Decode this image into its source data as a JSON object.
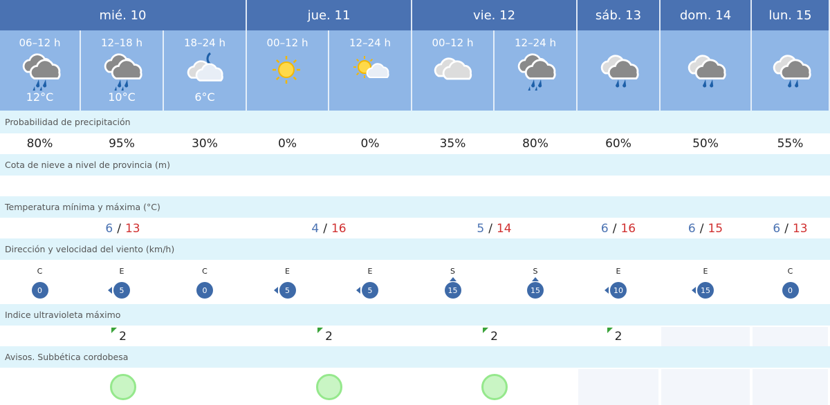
{
  "days": [
    {
      "label": "mié. 10",
      "tmin": "6",
      "tmax": "13"
    },
    {
      "label": "jue. 11",
      "tmin": "4",
      "tmax": "16"
    },
    {
      "label": "vie. 12",
      "tmin": "5",
      "tmax": "14"
    },
    {
      "label": "sáb. 13",
      "tmin": "6",
      "tmax": "16"
    },
    {
      "label": "dom. 14",
      "tmin": "6",
      "tmax": "15"
    },
    {
      "label": "lun. 15",
      "tmin": "6",
      "tmax": "13"
    }
  ],
  "temp_sep": "/",
  "periods": [
    {
      "period": "06–12 h",
      "icon": "rain-cloud-icon",
      "temp": "12°C",
      "precip": "80%",
      "wind_dir": "C",
      "wind_speed": "0",
      "arrow": "none"
    },
    {
      "period": "12–18 h",
      "icon": "rain-cloud-icon",
      "temp": "10°C",
      "precip": "95%",
      "wind_dir": "E",
      "wind_speed": "5",
      "arrow": "left"
    },
    {
      "period": "18–24 h",
      "icon": "cloud-moon-icon",
      "temp": "6°C",
      "precip": "30%",
      "wind_dir": "C",
      "wind_speed": "0",
      "arrow": "none"
    },
    {
      "period": "00–12 h",
      "icon": "sun-icon",
      "temp": "",
      "precip": "0%",
      "wind_dir": "E",
      "wind_speed": "5",
      "arrow": "left"
    },
    {
      "period": "12–24 h",
      "icon": "sun-cloud-icon",
      "temp": "",
      "precip": "0%",
      "wind_dir": "E",
      "wind_speed": "5",
      "arrow": "left"
    },
    {
      "period": "00–12 h",
      "icon": "cloud-icon",
      "temp": "",
      "precip": "35%",
      "wind_dir": "S",
      "wind_speed": "15",
      "arrow": "up"
    },
    {
      "period": "12–24 h",
      "icon": "rain-cloud-icon",
      "temp": "",
      "precip": "80%",
      "wind_dir": "S",
      "wind_speed": "15",
      "arrow": "up"
    },
    {
      "period": "",
      "icon": "light-rain-cloud-icon",
      "temp": "",
      "precip": "60%",
      "wind_dir": "E",
      "wind_speed": "10",
      "arrow": "left"
    },
    {
      "period": "",
      "icon": "light-rain-cloud-icon",
      "temp": "",
      "precip": "50%",
      "wind_dir": "E",
      "wind_speed": "15",
      "arrow": "left"
    },
    {
      "period": "",
      "icon": "light-rain-cloud-icon",
      "temp": "",
      "precip": "55%",
      "wind_dir": "C",
      "wind_speed": "0",
      "arrow": "none"
    }
  ],
  "labels": {
    "precip": "Probabilidad de precipitación",
    "snow": "Cota de nieve a nivel de provincia (m)",
    "temp": "Temperatura mínima y máxima (°C)",
    "wind": "Dirección y velocidad del viento (km/h)",
    "uv": "Indice ultravioleta máximo",
    "warnings": "Avisos. Subbética cordobesa"
  },
  "uv": [
    "2",
    "2",
    "2",
    "2",
    null,
    null
  ],
  "warnings": [
    "green",
    "green",
    "green",
    null,
    null,
    null
  ],
  "colors": {
    "header": "#4a72b2",
    "subheader": "#8fb6e6",
    "label_row": "#dff4fb",
    "tmax": "#d03030",
    "tmin": "#4a72b2",
    "uv_low": "#3aa33a",
    "warn_green": "#c9f5c4"
  }
}
